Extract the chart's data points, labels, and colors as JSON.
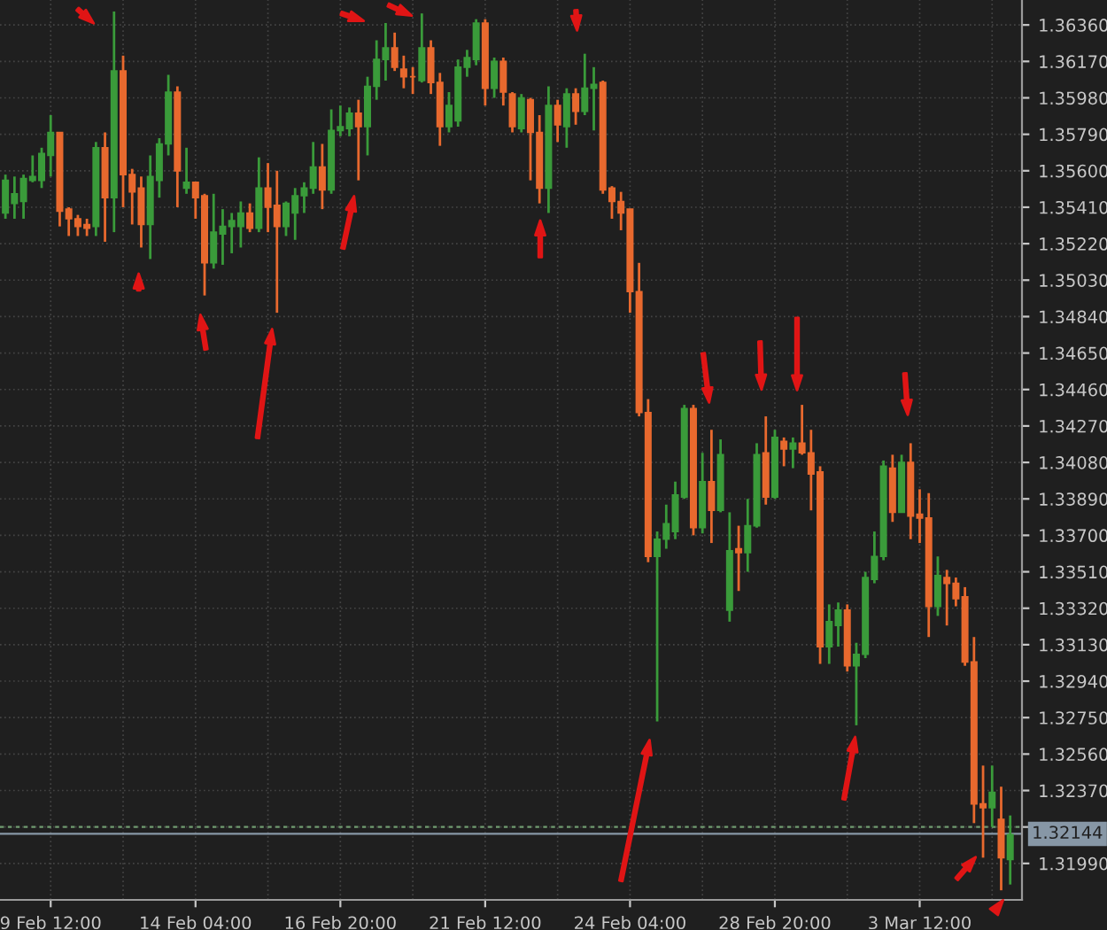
{
  "chart_data": {
    "type": "candlestick",
    "categories": [
      null,
      null,
      null,
      null,
      null,
      "9 Feb 12:00",
      null,
      null,
      null,
      null,
      null,
      null,
      null,
      null,
      null,
      null,
      null,
      null,
      null,
      null,
      null,
      "14 Feb 04:00",
      null,
      null,
      null,
      null,
      null,
      null,
      null,
      null,
      null,
      null,
      null,
      null,
      null,
      null,
      null,
      "16 Feb 20:00",
      null,
      null,
      null,
      null,
      null,
      null,
      null,
      null,
      null,
      null,
      null,
      null,
      null,
      null,
      null,
      "21 Feb 12:00",
      null,
      null,
      null,
      null,
      null,
      null,
      null,
      null,
      null,
      null,
      null,
      null,
      null,
      null,
      null,
      "24 Feb 04:00",
      null,
      null,
      null,
      null,
      null,
      null,
      null,
      null,
      null,
      null,
      null,
      null,
      null,
      null,
      null,
      "28 Feb 20:00",
      null,
      null,
      null,
      null,
      null,
      null,
      null,
      null,
      null,
      null,
      null,
      null,
      null,
      null,
      null,
      "3 Mar 12:00",
      null,
      null,
      null,
      null,
      null,
      null,
      null,
      null,
      null,
      null
    ],
    "ohlc": [
      [
        1.3538,
        1.3558,
        1.3535,
        1.3555
      ],
      [
        1.3543,
        1.3557,
        1.3535,
        1.3548
      ],
      [
        1.3544,
        1.3558,
        1.3535,
        1.3556
      ],
      [
        1.3555,
        1.3568,
        1.3554,
        1.3557
      ],
      [
        1.3555,
        1.3572,
        1.3551,
        1.3569
      ],
      [
        1.3568,
        1.3589,
        1.3557,
        1.358
      ],
      [
        1.358,
        1.358,
        1.3531,
        1.3539
      ],
      [
        1.354,
        1.3541,
        1.3526,
        1.3535
      ],
      [
        1.3535,
        1.3537,
        1.3526,
        1.3531
      ],
      [
        1.3532,
        1.3535,
        1.3526,
        1.353
      ],
      [
        1.3531,
        1.3575,
        1.3526,
        1.3572
      ],
      [
        1.3572,
        1.358,
        1.3523,
        1.3546
      ],
      [
        1.3546,
        1.3643,
        1.3528,
        1.3612
      ],
      [
        1.3612,
        1.362,
        1.3541,
        1.3558
      ],
      [
        1.3558,
        1.3561,
        1.3532,
        1.3549
      ],
      [
        1.3551,
        1.3557,
        1.352,
        1.3532
      ],
      [
        1.3532,
        1.3568,
        1.3514,
        1.3557
      ],
      [
        1.3555,
        1.3577,
        1.3546,
        1.3574
      ],
      [
        1.3574,
        1.361,
        1.3568,
        1.3601
      ],
      [
        1.3601,
        1.3604,
        1.3541,
        1.356
      ],
      [
        1.3551,
        1.3572,
        1.3548,
        1.3554
      ],
      [
        1.3554,
        1.3554,
        1.3535,
        1.3546
      ],
      [
        1.3547,
        1.3548,
        1.3495,
        1.3512
      ],
      [
        1.3512,
        1.3548,
        1.3509,
        1.3528
      ],
      [
        1.3527,
        1.354,
        1.3511,
        1.3531
      ],
      [
        1.3531,
        1.3538,
        1.3517,
        1.3534
      ],
      [
        1.3531,
        1.3544,
        1.352,
        1.3538
      ],
      [
        1.3538,
        1.3543,
        1.3528,
        1.353
      ],
      [
        1.353,
        1.3567,
        1.3528,
        1.3551
      ],
      [
        1.3551,
        1.3564,
        1.3528,
        1.3541
      ],
      [
        1.3542,
        1.356,
        1.3486,
        1.3531
      ],
      [
        1.3531,
        1.3544,
        1.3526,
        1.3543
      ],
      [
        1.3538,
        1.3551,
        1.3524,
        1.3547
      ],
      [
        1.3547,
        1.3554,
        1.3538,
        1.3551
      ],
      [
        1.3551,
        1.3575,
        1.3548,
        1.3562
      ],
      [
        1.3562,
        1.3574,
        1.354,
        1.355
      ],
      [
        1.355,
        1.3592,
        1.3548,
        1.3581
      ],
      [
        1.3581,
        1.3594,
        1.3578,
        1.3583
      ],
      [
        1.3582,
        1.3593,
        1.3578,
        1.359
      ],
      [
        1.359,
        1.3597,
        1.3555,
        1.3583
      ],
      [
        1.3583,
        1.3609,
        1.3568,
        1.3604
      ],
      [
        1.3604,
        1.3628,
        1.3597,
        1.3618
      ],
      [
        1.3618,
        1.3637,
        1.3607,
        1.3624
      ],
      [
        1.3624,
        1.3632,
        1.3612,
        1.3614
      ],
      [
        1.3613,
        1.362,
        1.3603,
        1.3609
      ],
      [
        1.3609,
        1.3614,
        1.36,
        1.3609
      ],
      [
        1.3607,
        1.3642,
        1.3606,
        1.3624
      ],
      [
        1.3624,
        1.3628,
        1.36,
        1.3606
      ],
      [
        1.3606,
        1.3611,
        1.3573,
        1.3583
      ],
      [
        1.3583,
        1.3601,
        1.358,
        1.3594
      ],
      [
        1.3586,
        1.3618,
        1.3583,
        1.3614
      ],
      [
        1.3614,
        1.3623,
        1.3609,
        1.3619
      ],
      [
        1.3618,
        1.3639,
        1.3615,
        1.3637
      ],
      [
        1.3637,
        1.3639,
        1.3594,
        1.3603
      ],
      [
        1.3603,
        1.3619,
        1.3598,
        1.3617
      ],
      [
        1.3617,
        1.3619,
        1.3594,
        1.3601
      ],
      [
        1.36,
        1.3601,
        1.358,
        1.3583
      ],
      [
        1.3582,
        1.36,
        1.358,
        1.3598
      ],
      [
        1.3597,
        1.3598,
        1.3555,
        1.358
      ],
      [
        1.358,
        1.3589,
        1.3543,
        1.3551
      ],
      [
        1.3551,
        1.3604,
        1.3538,
        1.3594
      ],
      [
        1.3594,
        1.3597,
        1.3575,
        1.3584
      ],
      [
        1.3583,
        1.3603,
        1.3572,
        1.36
      ],
      [
        1.36,
        1.3603,
        1.3584,
        1.3591
      ],
      [
        1.3591,
        1.3621,
        1.3589,
        1.3603
      ],
      [
        1.3603,
        1.3614,
        1.3581,
        1.3605
      ],
      [
        1.3606,
        1.3607,
        1.3548,
        1.355
      ],
      [
        1.3551,
        1.3552,
        1.3535,
        1.3544
      ],
      [
        1.3544,
        1.3549,
        1.3529,
        1.3538
      ],
      [
        1.354,
        1.354,
        1.3486,
        1.3497
      ],
      [
        1.3497,
        1.3512,
        1.3432,
        1.3434
      ],
      [
        1.3434,
        1.3441,
        1.3356,
        1.3359
      ],
      [
        1.3359,
        1.3372,
        1.3273,
        1.3368
      ],
      [
        1.3368,
        1.3386,
        1.3363,
        1.3376
      ],
      [
        1.3372,
        1.3398,
        1.3368,
        1.3391
      ],
      [
        1.339,
        1.3438,
        1.3389,
        1.3436
      ],
      [
        1.3436,
        1.3438,
        1.337,
        1.3374
      ],
      [
        1.3374,
        1.3413,
        1.3371,
        1.3398
      ],
      [
        1.3398,
        1.3425,
        1.3366,
        1.3383
      ],
      [
        1.3383,
        1.342,
        1.3382,
        1.3412
      ],
      [
        1.3331,
        1.3382,
        1.3325,
        1.3362
      ],
      [
        1.3363,
        1.3375,
        1.3341,
        1.3361
      ],
      [
        1.3361,
        1.3389,
        1.3351,
        1.3375
      ],
      [
        1.3375,
        1.3418,
        1.3374,
        1.3412
      ],
      [
        1.3413,
        1.3432,
        1.3386,
        1.339
      ],
      [
        1.339,
        1.3425,
        1.3389,
        1.3421
      ],
      [
        1.3419,
        1.3421,
        1.3406,
        1.3415
      ],
      [
        1.3415,
        1.3421,
        1.3405,
        1.3418
      ],
      [
        1.3418,
        1.3438,
        1.3412,
        1.3413
      ],
      [
        1.3413,
        1.3425,
        1.3383,
        1.3402
      ],
      [
        1.3403,
        1.3406,
        1.3303,
        1.3312
      ],
      [
        1.3312,
        1.3334,
        1.3303,
        1.3325
      ],
      [
        1.3323,
        1.3335,
        1.3312,
        1.3331
      ],
      [
        1.3331,
        1.3334,
        1.3299,
        1.3302
      ],
      [
        1.3302,
        1.3314,
        1.3271,
        1.3308
      ],
      [
        1.3308,
        1.3351,
        1.3306,
        1.3348
      ],
      [
        1.3347,
        1.3372,
        1.3345,
        1.3359
      ],
      [
        1.3359,
        1.3409,
        1.3357,
        1.3406
      ],
      [
        1.3405,
        1.3412,
        1.3377,
        1.3382
      ],
      [
        1.3382,
        1.3412,
        1.3382,
        1.3408
      ],
      [
        1.3408,
        1.3418,
        1.3368,
        1.338
      ],
      [
        1.3381,
        1.3394,
        1.3366,
        1.3379
      ],
      [
        1.3379,
        1.3392,
        1.3317,
        1.3333
      ],
      [
        1.3333,
        1.3359,
        1.3328,
        1.3349
      ],
      [
        1.3348,
        1.3352,
        1.3323,
        1.3345
      ],
      [
        1.3345,
        1.3348,
        1.3333,
        1.3337
      ],
      [
        1.3338,
        1.3343,
        1.3302,
        1.3304
      ],
      [
        1.3304,
        1.3317,
        1.322,
        1.323
      ],
      [
        1.323,
        1.325,
        1.3202,
        1.3228
      ],
      [
        1.3228,
        1.325,
        1.3218,
        1.3236
      ],
      [
        1.3222,
        1.3239,
        1.3185,
        1.3202
      ],
      [
        1.3201,
        1.3224,
        1.3188,
        1.3214
      ]
    ],
    "colors": [
      "#3a9b3a",
      "#3a9b3a",
      "#3a9b3a",
      "#3a9b3a",
      "#3a9b3a",
      "#3a9b3a",
      "#e8692e",
      "#e8692e",
      "#e8692e",
      "#e8692e",
      "#3a9b3a",
      "#e8692e",
      "#3a9b3a",
      "#e8692e",
      "#e8692e",
      "#e8692e",
      "#3a9b3a",
      "#3a9b3a",
      "#3a9b3a",
      "#e8692e",
      "#3a9b3a",
      "#e8692e",
      "#e8692e",
      "#3a9b3a",
      "#3a9b3a",
      "#3a9b3a",
      "#3a9b3a",
      "#e8692e",
      "#3a9b3a",
      "#e8692e",
      "#e8692e",
      "#3a9b3a",
      "#3a9b3a",
      "#3a9b3a",
      "#3a9b3a",
      "#e8692e",
      "#3a9b3a",
      "#3a9b3a",
      "#3a9b3a",
      "#e8692e",
      "#3a9b3a",
      "#3a9b3a",
      "#3a9b3a",
      "#e8692e",
      "#e8692e",
      "#e8692e",
      "#3a9b3a",
      "#e8692e",
      "#e8692e",
      "#3a9b3a",
      "#3a9b3a",
      "#3a9b3a",
      "#3a9b3a",
      "#e8692e",
      "#3a9b3a",
      "#e8692e",
      "#e8692e",
      "#3a9b3a",
      "#e8692e",
      "#e8692e",
      "#3a9b3a",
      "#e8692e",
      "#3a9b3a",
      "#e8692e",
      "#3a9b3a",
      "#3a9b3a",
      "#e8692e",
      "#e8692e",
      "#e8692e",
      "#e8692e",
      "#e8692e",
      "#e8692e",
      "#3a9b3a",
      "#3a9b3a",
      "#3a9b3a",
      "#3a9b3a",
      "#e8692e",
      "#3a9b3a",
      "#e8692e",
      "#3a9b3a",
      "#3a9b3a",
      "#e8692e",
      "#3a9b3a",
      "#3a9b3a",
      "#e8692e",
      "#3a9b3a",
      "#e8692e",
      "#3a9b3a",
      "#e8692e",
      "#e8692e",
      "#e8692e",
      "#3a9b3a",
      "#3a9b3a",
      "#e8692e",
      "#3a9b3a",
      "#3a9b3a",
      "#3a9b3a",
      "#3a9b3a",
      "#e8692e",
      "#3a9b3a",
      "#e8692e",
      "#e8692e",
      "#e8692e",
      "#3a9b3a",
      "#e8692e",
      "#e8692e",
      "#e8692e",
      "#e8692e",
      "#e8692e",
      "#3a9b3a",
      "#e8692e",
      "#3a9b3a"
    ],
    "ylim": [
      1.318,
      1.3649
    ],
    "yticks": [
      {
        "value": 1.3636,
        "label": "1.36360"
      },
      {
        "value": 1.3617,
        "label": "1.36170"
      },
      {
        "value": 1.3598,
        "label": "1.35980"
      },
      {
        "value": 1.3579,
        "label": "1.35790"
      },
      {
        "value": 1.356,
        "label": "1.35600"
      },
      {
        "value": 1.3541,
        "label": "1.35410"
      },
      {
        "value": 1.3522,
        "label": "1.35220"
      },
      {
        "value": 1.3503,
        "label": "1.35030"
      },
      {
        "value": 1.3484,
        "label": "1.34840"
      },
      {
        "value": 1.3465,
        "label": "1.34650"
      },
      {
        "value": 1.3446,
        "label": "1.34460"
      },
      {
        "value": 1.3427,
        "label": "1.34270"
      },
      {
        "value": 1.3408,
        "label": "1.34080"
      },
      {
        "value": 1.3389,
        "label": "1.33890"
      },
      {
        "value": 1.337,
        "label": "1.33700"
      },
      {
        "value": 1.3351,
        "label": "1.33510"
      },
      {
        "value": 1.3332,
        "label": "1.33320"
      },
      {
        "value": 1.3313,
        "label": "1.33130"
      },
      {
        "value": 1.3294,
        "label": "1.32940"
      },
      {
        "value": 1.3275,
        "label": "1.32750"
      },
      {
        "value": 1.3256,
        "label": "1.32560"
      },
      {
        "value": 1.3237,
        "label": "1.32370"
      },
      {
        "value": 1.3218,
        "label": null
      },
      {
        "value": 1.3199,
        "label": "1.31990"
      }
    ],
    "ref_lines": [
      {
        "axis": "y",
        "value": 1.3218,
        "color": "#6f9a6f",
        "line_style": "dashed"
      },
      {
        "axis": "y",
        "value": 1.32144,
        "label": "1.32144",
        "color": "#8797a6",
        "line_style": "solid"
      }
    ],
    "grid": true
  }
}
